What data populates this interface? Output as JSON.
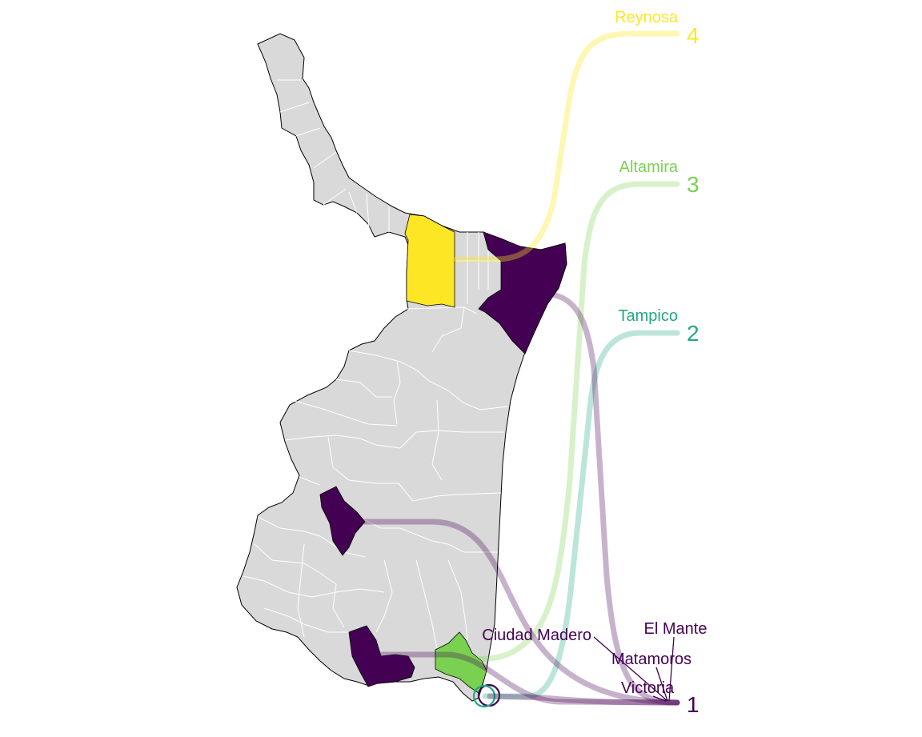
{
  "map": {
    "state_fill": "#d9d9d9",
    "border_color": "#ffffff",
    "outline_color": "#000000"
  },
  "ranking": [
    {
      "rank": "4",
      "city": "Reynosa",
      "color": "#fde725"
    },
    {
      "rank": "3",
      "city": "Altamira",
      "color": "#7ad151"
    },
    {
      "rank": "2",
      "city": "Tampico",
      "color": "#22a884"
    },
    {
      "rank": "1",
      "cities": [
        "Ciudad Madero",
        "El Mante",
        "Matamoros",
        "Victoria"
      ],
      "color": "#440154"
    }
  ]
}
